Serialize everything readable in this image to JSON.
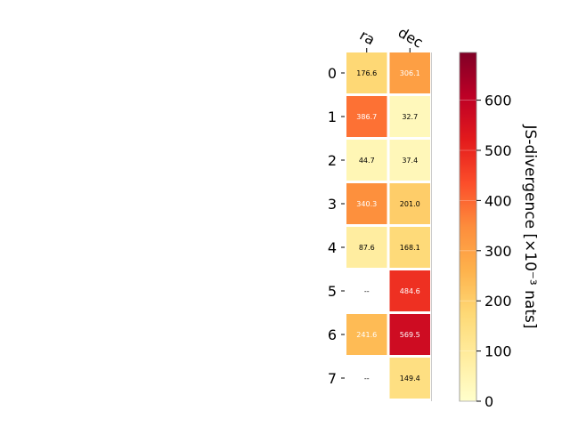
{
  "chart_data": {
    "type": "heatmap",
    "columns": [
      "ra",
      "dec"
    ],
    "rows": [
      "0",
      "1",
      "2",
      "3",
      "4",
      "5",
      "6",
      "7"
    ],
    "values": [
      [
        176.6,
        306.1
      ],
      [
        386.7,
        32.7
      ],
      [
        44.7,
        37.4
      ],
      [
        340.3,
        201.0
      ],
      [
        87.6,
        168.1
      ],
      [
        null,
        484.6
      ],
      [
        241.6,
        569.5
      ],
      [
        null,
        149.4
      ]
    ],
    "cell_labels": [
      [
        "176.6",
        "306.1"
      ],
      [
        "386.7",
        "32.7"
      ],
      [
        "44.7",
        "37.4"
      ],
      [
        "340.3",
        "201.0"
      ],
      [
        "87.6",
        "168.1"
      ],
      [
        "--",
        "484.6"
      ],
      [
        "241.6",
        "569.5"
      ],
      [
        "--",
        "149.4"
      ]
    ],
    "colormap": "YlOrRd",
    "colorbar": {
      "label": "JS-divergence [×10⁻³ nats]",
      "vmin": 0,
      "vmax": 695,
      "ticks": [
        0,
        100,
        200,
        300,
        400,
        500,
        600
      ]
    }
  }
}
